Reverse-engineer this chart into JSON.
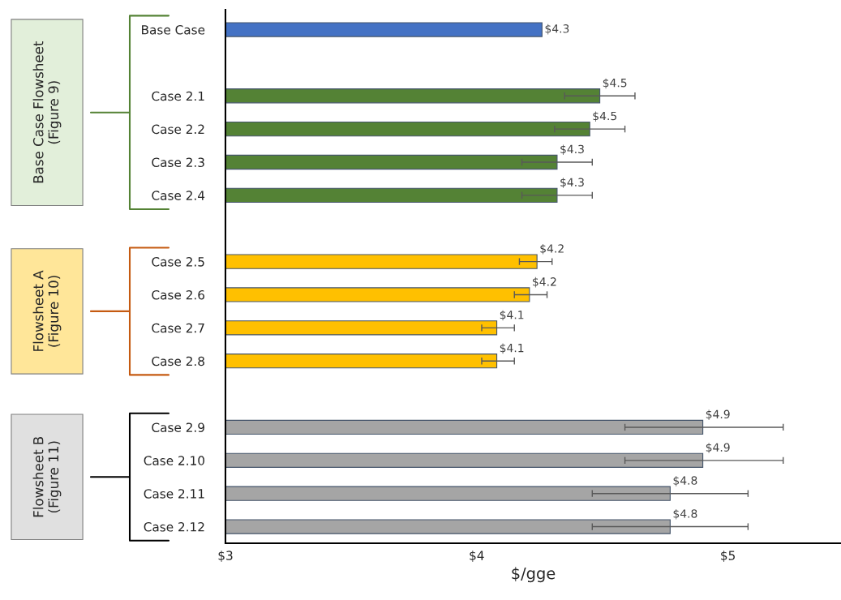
{
  "chart_data": {
    "type": "bar",
    "orientation": "horizontal",
    "xlabel": "$/gge",
    "categories": [
      "Base Case",
      null,
      "Case 2.1",
      "Case 2.2",
      "Case 2.3",
      "Case 2.4",
      null,
      "Case 2.5",
      "Case 2.6",
      "Case 2.7",
      "Case 2.8",
      null,
      "Case 2.9",
      "Case 2.10",
      "Case 2.11",
      "Case 2.12"
    ],
    "values": [
      4.26,
      null,
      4.49,
      4.45,
      4.32,
      4.32,
      null,
      4.24,
      4.21,
      4.08,
      4.08,
      null,
      4.9,
      4.9,
      4.77,
      4.77
    ],
    "colors": [
      "#4472c4",
      null,
      "#548235",
      "#548235",
      "#548235",
      "#548235",
      null,
      "#ffc000",
      "#ffc000",
      "#ffc000",
      "#ffc000",
      null,
      "#a5a5a5",
      "#a5a5a5",
      "#a5a5a5",
      "#a5a5a5"
    ],
    "errors": [
      null,
      null,
      [
        4.35,
        4.63
      ],
      [
        4.31,
        4.59
      ],
      [
        4.18,
        4.46
      ],
      [
        4.18,
        4.46
      ],
      null,
      [
        4.17,
        4.3
      ],
      [
        4.15,
        4.28
      ],
      [
        4.02,
        4.15
      ],
      [
        4.02,
        4.15
      ],
      null,
      [
        4.59,
        5.22
      ],
      [
        4.59,
        5.22
      ],
      [
        4.46,
        5.08
      ],
      [
        4.46,
        5.08
      ]
    ],
    "value_labels": [
      "$4.3",
      null,
      "$4.5",
      "$4.5",
      "$4.3",
      "$4.3",
      null,
      "$4.2",
      "$4.2",
      "$4.1",
      "$4.1",
      null,
      "$4.9",
      "$4.9",
      "$4.8",
      "$4.8"
    ],
    "xlim": [
      3,
      5.45
    ],
    "xticks": [
      {
        "value": 3,
        "label": "$3"
      },
      {
        "value": 4,
        "label": "$4"
      },
      {
        "value": 5,
        "label": "$5"
      }
    ],
    "grid": false,
    "annotations": [
      "Base Case Flowsheet\n(Figure 9)",
      "Flowsheet A\n(Figure 10)",
      "Flowsheet B\n(Figure 11)"
    ]
  }
}
